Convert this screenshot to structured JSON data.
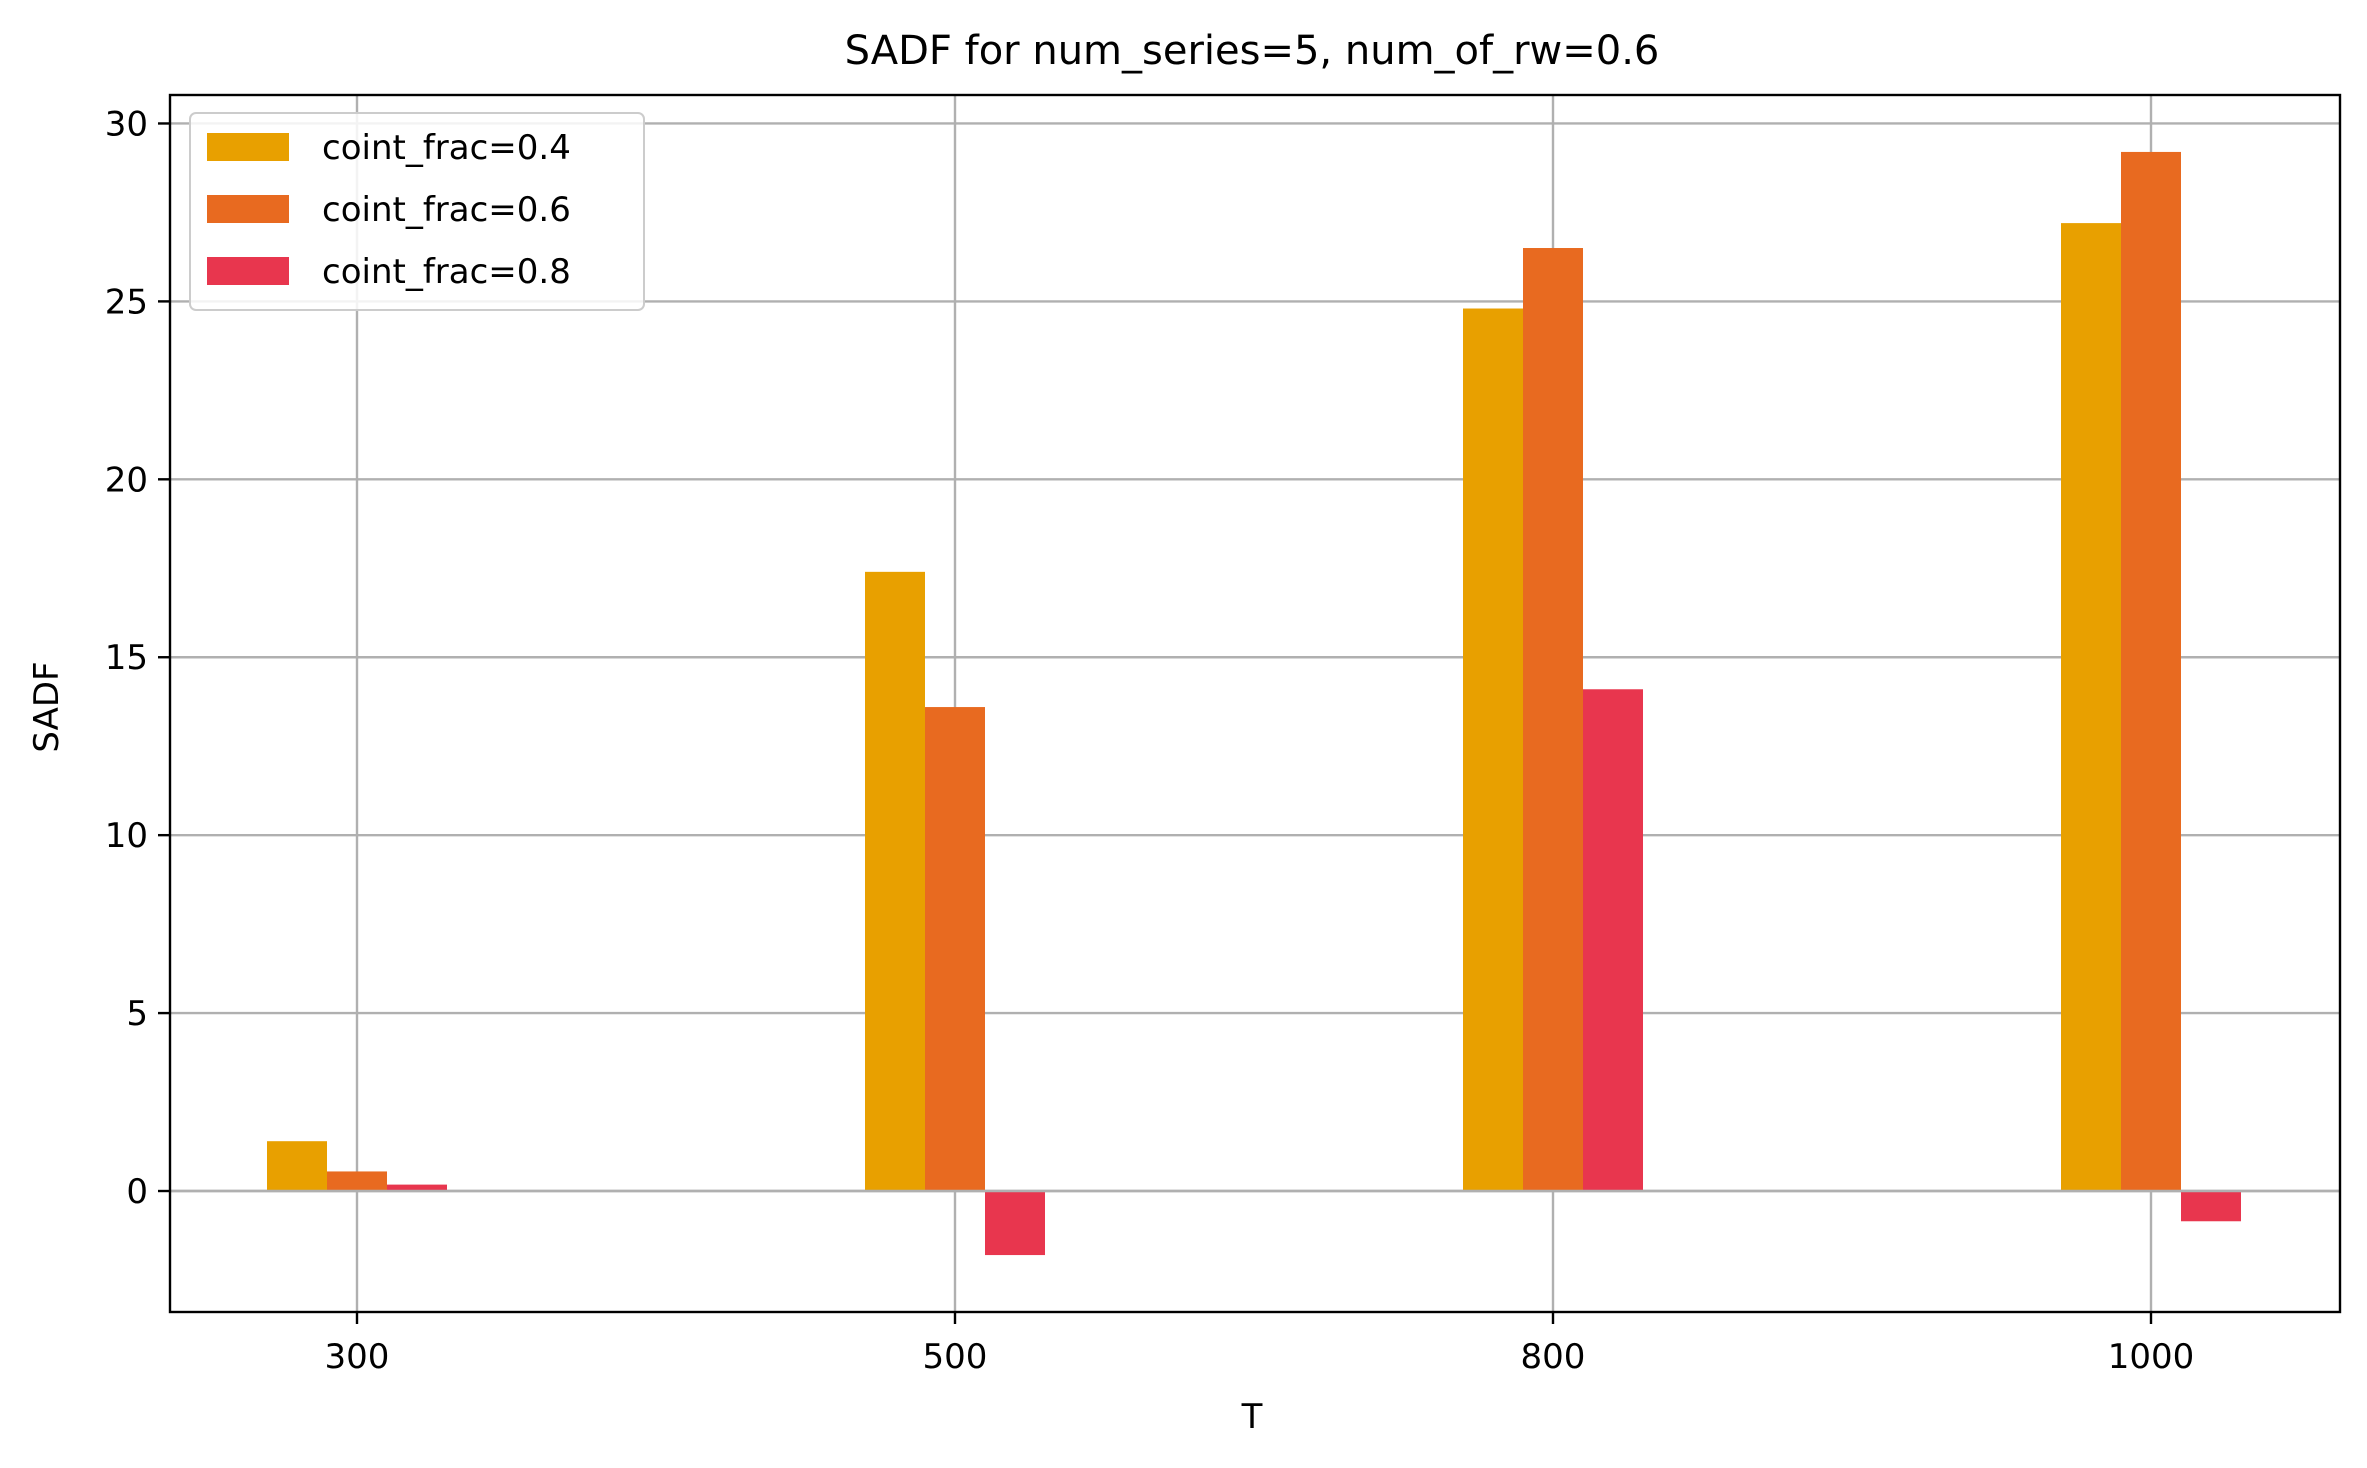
{
  "chart_data": {
    "type": "bar",
    "title": "SADF for num_series=5, num_of_rw=0.6",
    "xlabel": "T",
    "ylabel": "SADF",
    "categories": [
      "300",
      "500",
      "800",
      "1000"
    ],
    "series": [
      {
        "name": "coint_frac=0.4",
        "color": "#E8A000",
        "values": [
          1.4,
          17.4,
          24.8,
          27.2
        ]
      },
      {
        "name": "coint_frac=0.6",
        "color": "#E86A20",
        "values": [
          0.55,
          13.6,
          26.5,
          29.2
        ]
      },
      {
        "name": "coint_frac=0.8",
        "color": "#E8364E",
        "values": [
          0.18,
          -1.8,
          14.1,
          -0.85
        ]
      }
    ],
    "ylim": [
      -3.4,
      30.8
    ],
    "yticks": [
      0,
      5,
      10,
      15,
      20,
      25,
      30
    ],
    "grid": true,
    "legend_position": "top-left"
  }
}
